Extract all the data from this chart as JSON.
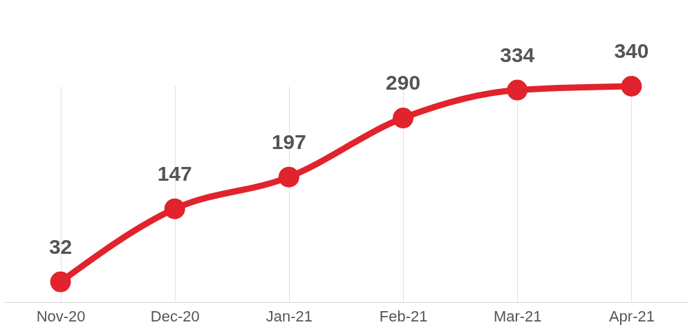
{
  "chart_data": {
    "type": "line",
    "categories": [
      "Nov-20",
      "Dec-20",
      "Jan-21",
      "Feb-21",
      "Mar-21",
      "Apr-21"
    ],
    "series": [
      {
        "color": "#e0232c",
        "values": [
          32,
          147,
          197,
          290,
          334,
          340
        ]
      }
    ],
    "data_labels": true,
    "marker": "circle",
    "line_style": "solid",
    "grid": "x",
    "tick_labels": "x"
  }
}
